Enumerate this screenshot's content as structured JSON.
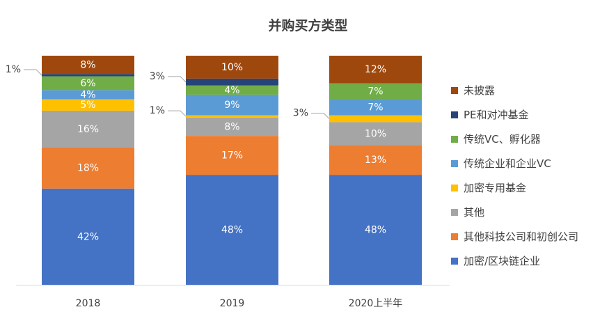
{
  "chart_data": {
    "type": "bar",
    "stacked": true,
    "percent": true,
    "title": "并购买方类型",
    "categories": [
      "2018",
      "2019",
      "2020上半年"
    ],
    "series": [
      {
        "name": "加密/区块链企业",
        "color": "#4472c4",
        "values": [
          42,
          48,
          48
        ],
        "labels": [
          "42%",
          "48%",
          "48%"
        ]
      },
      {
        "name": "其他科技公司和初创公司",
        "color": "#ed7d31",
        "values": [
          18,
          17,
          13
        ],
        "labels": [
          "18%",
          "17%",
          "13%"
        ]
      },
      {
        "name": "其他",
        "color": "#a5a5a5",
        "values": [
          16,
          8,
          10
        ],
        "labels": [
          "16%",
          "8%",
          "10%"
        ]
      },
      {
        "name": "加密专用基金",
        "color": "#ffc000",
        "values": [
          5,
          1,
          3
        ],
        "labels": [
          "5%",
          "1%",
          "3%"
        ]
      },
      {
        "name": "传统企业和企业VC",
        "color": "#5b9bd5",
        "values": [
          4,
          9,
          7
        ],
        "labels": [
          "4%",
          "9%",
          "7%"
        ]
      },
      {
        "name": "传统VC、孵化器",
        "color": "#70ad47",
        "values": [
          6,
          4,
          7
        ],
        "labels": [
          "6%",
          "4%",
          "7%"
        ]
      },
      {
        "name": "PE和对冲基金",
        "color": "#264478",
        "values": [
          1,
          3,
          0
        ],
        "labels": [
          "1%",
          "3%",
          ""
        ]
      },
      {
        "name": "未披露",
        "color": "#9e480e",
        "values": [
          8,
          10,
          12
        ],
        "labels": [
          "8%",
          "10%",
          "12%"
        ]
      }
    ],
    "ylim": [
      0,
      100
    ],
    "grid": false,
    "legend_position": "right"
  }
}
